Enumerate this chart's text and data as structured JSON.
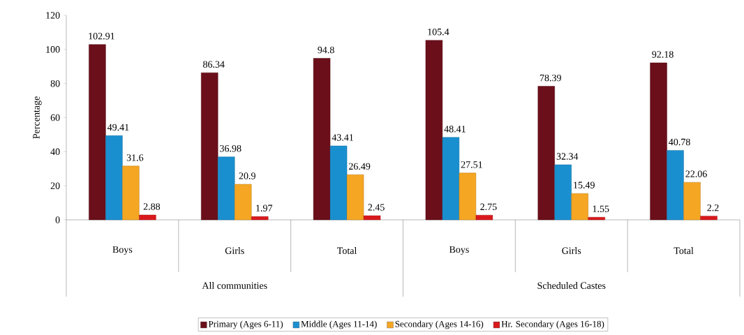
{
  "chart_data": {
    "type": "bar",
    "ylabel": "Percentage",
    "categories": [
      "Boys",
      "Girls",
      "Total",
      "Boys",
      "Girls",
      "Total"
    ],
    "annotations": [
      "All communities",
      "Scheduled Castes"
    ],
    "series": [
      {
        "name": "Primary (Ages 6-11)",
        "color": "#6b0f1a",
        "values": [
          102.91,
          86.34,
          94.8,
          105.4,
          78.39,
          92.18
        ]
      },
      {
        "name": "Middle (Ages 11-14)",
        "color": "#1a8fd0",
        "values": [
          49.41,
          36.98,
          43.41,
          48.41,
          32.34,
          40.78
        ]
      },
      {
        "name": "Secondary (Ages 14-16)",
        "color": "#f5a623",
        "values": [
          31.6,
          20.9,
          26.49,
          27.51,
          15.49,
          22.06
        ]
      },
      {
        "name": "Hr. Secondary (Ages 16-18)",
        "color": "#d9191c",
        "values": [
          2.88,
          1.97,
          2.45,
          2.75,
          1.55,
          2.2
        ]
      }
    ],
    "ylim": [
      0,
      120
    ],
    "yticks": [
      0,
      20,
      40,
      60,
      80,
      100,
      120
    ],
    "data_labels": true,
    "legend": "bottom"
  }
}
